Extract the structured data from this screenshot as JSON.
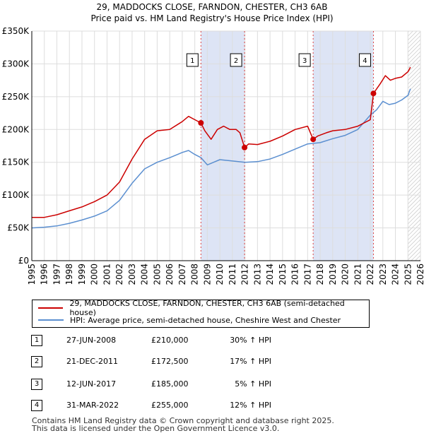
{
  "chart_data": {
    "type": "line",
    "title": "29, MADDOCKS CLOSE, FARNDON, CHESTER, CH3 6AB",
    "subtitle": "Price paid vs. HM Land Registry's House Price Index (HPI)",
    "xlabel": "",
    "ylabel": "",
    "xlim": [
      1995,
      2026
    ],
    "ylim": [
      0,
      350000
    ],
    "grid": true,
    "y_ticks": [
      {
        "value": 0,
        "label": "£0"
      },
      {
        "value": 50000,
        "label": "£50K"
      },
      {
        "value": 100000,
        "label": "£100K"
      },
      {
        "value": 150000,
        "label": "£150K"
      },
      {
        "value": 200000,
        "label": "£200K"
      },
      {
        "value": 250000,
        "label": "£250K"
      },
      {
        "value": 300000,
        "label": "£300K"
      },
      {
        "value": 350000,
        "label": "£350K"
      }
    ],
    "x_ticks": [
      "1995",
      "1996",
      "1997",
      "1998",
      "1999",
      "2000",
      "2001",
      "2002",
      "2003",
      "2004",
      "2005",
      "2006",
      "2007",
      "2008",
      "2009",
      "2010",
      "2011",
      "2012",
      "2013",
      "2014",
      "2015",
      "2016",
      "2017",
      "2018",
      "2019",
      "2020",
      "2021",
      "2022",
      "2023",
      "2024",
      "2025",
      "2026"
    ],
    "series": [
      {
        "name": "29, MADDOCKS CLOSE, FARNDON, CHESTER, CH3 6AB (semi-detached house)",
        "color": "#cc0000",
        "x": [
          1995.0,
          1996.0,
          1997.0,
          1998.0,
          1999.0,
          2000.0,
          2001.0,
          2002.0,
          2003.0,
          2004.0,
          2005.0,
          2006.0,
          2007.0,
          2007.5,
          2008.0,
          2008.49,
          2008.8,
          2009.3,
          2009.8,
          2010.3,
          2010.8,
          2011.3,
          2011.6,
          2011.97,
          2012.3,
          2013.0,
          2014.0,
          2015.0,
          2016.0,
          2017.0,
          2017.44,
          2017.8,
          2018.5,
          2019.0,
          2020.0,
          2021.0,
          2021.5,
          2022.0,
          2022.25,
          2022.8,
          2023.2,
          2023.6,
          2024.0,
          2024.5,
          2025.0,
          2025.2
        ],
        "values": [
          66000,
          66000,
          70000,
          76000,
          82000,
          90000,
          100000,
          120000,
          155000,
          185000,
          198000,
          200000,
          212000,
          220000,
          215000,
          210000,
          198000,
          185000,
          200000,
          205000,
          200000,
          200000,
          195000,
          172500,
          178000,
          177000,
          182000,
          190000,
          200000,
          205000,
          185000,
          190000,
          195000,
          198000,
          200000,
          205000,
          210000,
          215000,
          255000,
          270000,
          282000,
          275000,
          278000,
          280000,
          288000,
          295000
        ]
      },
      {
        "name": "HPI: Average price, semi-detached house, Cheshire West and Chester",
        "color": "#5b8fd0",
        "x": [
          1995.0,
          1996.0,
          1997.0,
          1998.0,
          1999.0,
          2000.0,
          2001.0,
          2002.0,
          2003.0,
          2004.0,
          2005.0,
          2006.0,
          2007.0,
          2007.5,
          2008.0,
          2008.5,
          2009.0,
          2009.5,
          2010.0,
          2011.0,
          2012.0,
          2013.0,
          2014.0,
          2015.0,
          2016.0,
          2017.0,
          2018.0,
          2019.0,
          2020.0,
          2021.0,
          2022.0,
          2022.5,
          2023.0,
          2023.5,
          2024.0,
          2024.5,
          2025.0,
          2025.2
        ],
        "values": [
          50000,
          51000,
          53000,
          57000,
          62000,
          68000,
          76000,
          92000,
          118000,
          140000,
          150000,
          157000,
          165000,
          168000,
          162000,
          157000,
          146000,
          150000,
          154000,
          152000,
          150000,
          151000,
          155000,
          162000,
          170000,
          178000,
          180000,
          186000,
          191000,
          200000,
          222000,
          230000,
          243000,
          238000,
          240000,
          245000,
          252000,
          262000
        ]
      }
    ],
    "sales": [
      {
        "label": "1",
        "x": 2008.49,
        "value": 210000
      },
      {
        "label": "2",
        "x": 2011.97,
        "value": 172500
      },
      {
        "label": "3",
        "x": 2017.44,
        "value": 185000
      },
      {
        "label": "4",
        "x": 2022.25,
        "value": 255000
      }
    ],
    "shaded_periods": [
      {
        "from": 2008.49,
        "to": 2011.97
      },
      {
        "from": 2017.44,
        "to": 2022.25
      }
    ],
    "future_from": 2025.0,
    "colors": {
      "sale_line": "#cc0000",
      "hpi_line": "#5b8fd0",
      "shade": "#dde4f5",
      "marker_vline": "#dd4444"
    }
  },
  "legend": {
    "sale_label": "29, MADDOCKS CLOSE, FARNDON, CHESTER, CH3 6AB (semi-detached house)",
    "hpi_label": "HPI: Average price, semi-detached house, Cheshire West and Chester"
  },
  "sales_table": [
    {
      "num": "1",
      "date": "27-JUN-2008",
      "price": "£210,000",
      "hpi": "30% ↑ HPI"
    },
    {
      "num": "2",
      "date": "21-DEC-2011",
      "price": "£172,500",
      "hpi": "17% ↑ HPI"
    },
    {
      "num": "3",
      "date": "12-JUN-2017",
      "price": "£185,000",
      "hpi": "5% ↑ HPI"
    },
    {
      "num": "4",
      "date": "31-MAR-2022",
      "price": "£255,000",
      "hpi": "12% ↑ HPI"
    }
  ],
  "footer": {
    "line1": "Contains HM Land Registry data © Crown copyright and database right 2025.",
    "line2": "This data is licensed under the Open Government Licence v3.0."
  }
}
